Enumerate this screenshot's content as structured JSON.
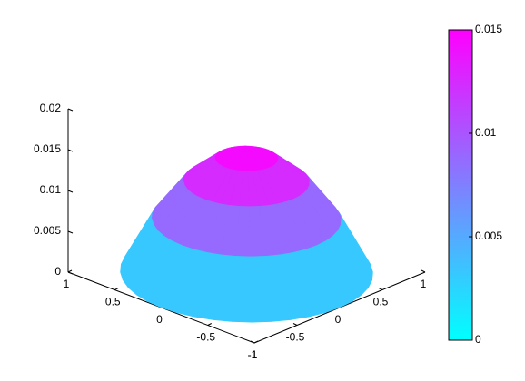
{
  "chart_data": {
    "type": "surface",
    "r": [
      0,
      0.25,
      0.5,
      0.75,
      1
    ],
    "values": [
      0.0148,
      0.0139,
      0.0111,
      0.0065,
      0
    ],
    "xlim": [
      -1,
      1
    ],
    "xticks": [
      -1,
      -0.5,
      0,
      0.5,
      1
    ],
    "ylim": [
      -1,
      1
    ],
    "yticks": [
      -1,
      -0.5,
      0,
      0.5,
      1
    ],
    "zlim": [
      0,
      0.02
    ],
    "zticks": [
      0,
      0.005,
      0.01,
      0.015,
      0.02
    ],
    "colormap": [
      "#00ffff",
      "#ff00ff"
    ],
    "clim": [
      0,
      0.015
    ],
    "cticks": [
      0,
      0.005,
      0.01,
      0.015
    ]
  }
}
